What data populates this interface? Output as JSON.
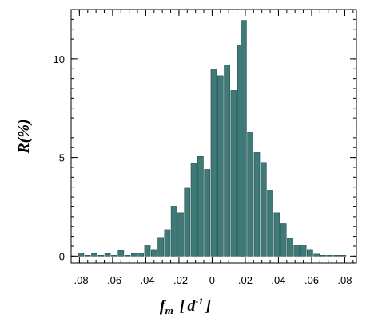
{
  "chart_data": {
    "type": "bar",
    "title": "",
    "xlabel": "f_m [d^-1]",
    "xlabel_parts": {
      "main": "f",
      "sub": "m",
      "open": "[",
      "unit": "d",
      "sup": "-1",
      "close": "]"
    },
    "ylabel": "R(%)",
    "xlim": [
      -0.085,
      0.087
    ],
    "ylim": [
      -0.35,
      12.5
    ],
    "x_ticks": [
      -0.08,
      -0.06,
      -0.04,
      -0.02,
      0,
      0.02,
      0.04,
      0.06,
      0.08
    ],
    "x_tick_labels": [
      "-.08",
      "-.06",
      "-.04",
      "-.02",
      "0",
      ".02",
      ".04",
      ".06",
      ".08"
    ],
    "y_ticks": [
      0,
      5,
      10
    ],
    "y_tick_labels": [
      "0",
      "5",
      "10"
    ],
    "bin_width": 0.004,
    "grid": false,
    "bars": [
      {
        "x": -0.079,
        "y": 0.15
      },
      {
        "x": -0.075,
        "y": 0.02
      },
      {
        "x": -0.071,
        "y": 0.12
      },
      {
        "x": -0.067,
        "y": 0.02
      },
      {
        "x": -0.063,
        "y": 0.12
      },
      {
        "x": -0.059,
        "y": 0.02
      },
      {
        "x": -0.055,
        "y": 0.28
      },
      {
        "x": -0.051,
        "y": 0.02
      },
      {
        "x": -0.047,
        "y": 0.12
      },
      {
        "x": -0.043,
        "y": 0.15
      },
      {
        "x": -0.039,
        "y": 0.55
      },
      {
        "x": -0.035,
        "y": 0.3
      },
      {
        "x": -0.031,
        "y": 0.95
      },
      {
        "x": -0.027,
        "y": 1.35
      },
      {
        "x": -0.023,
        "y": 2.5
      },
      {
        "x": -0.019,
        "y": 2.2
      },
      {
        "x": -0.015,
        "y": 3.45
      },
      {
        "x": -0.011,
        "y": 4.7
      },
      {
        "x": -0.007,
        "y": 5.05
      },
      {
        "x": -0.003,
        "y": 4.4
      },
      {
        "x": 0.001,
        "y": 9.45
      },
      {
        "x": 0.005,
        "y": 9.15
      },
      {
        "x": 0.009,
        "y": 9.7
      },
      {
        "x": 0.013,
        "y": 8.4
      },
      {
        "x": 0.017,
        "y": 10.7
      },
      {
        "x": 0.019,
        "y": 11.95
      },
      {
        "x": 0.023,
        "y": 6.3
      },
      {
        "x": 0.027,
        "y": 5.25
      },
      {
        "x": 0.031,
        "y": 4.75
      },
      {
        "x": 0.035,
        "y": 3.35
      },
      {
        "x": 0.039,
        "y": 2.2
      },
      {
        "x": 0.043,
        "y": 1.65
      },
      {
        "x": 0.047,
        "y": 0.9
      },
      {
        "x": 0.051,
        "y": 0.55
      },
      {
        "x": 0.055,
        "y": 0.55
      },
      {
        "x": 0.059,
        "y": 0.3
      },
      {
        "x": 0.063,
        "y": 0.1
      },
      {
        "x": 0.067,
        "y": 0.04
      },
      {
        "x": 0.071,
        "y": 0.02
      },
      {
        "x": 0.075,
        "y": 0.02
      },
      {
        "x": 0.079,
        "y": 0.02
      }
    ],
    "colors": {
      "bar": "#3f7a78",
      "bar_edge": "#1f4d4b"
    }
  }
}
